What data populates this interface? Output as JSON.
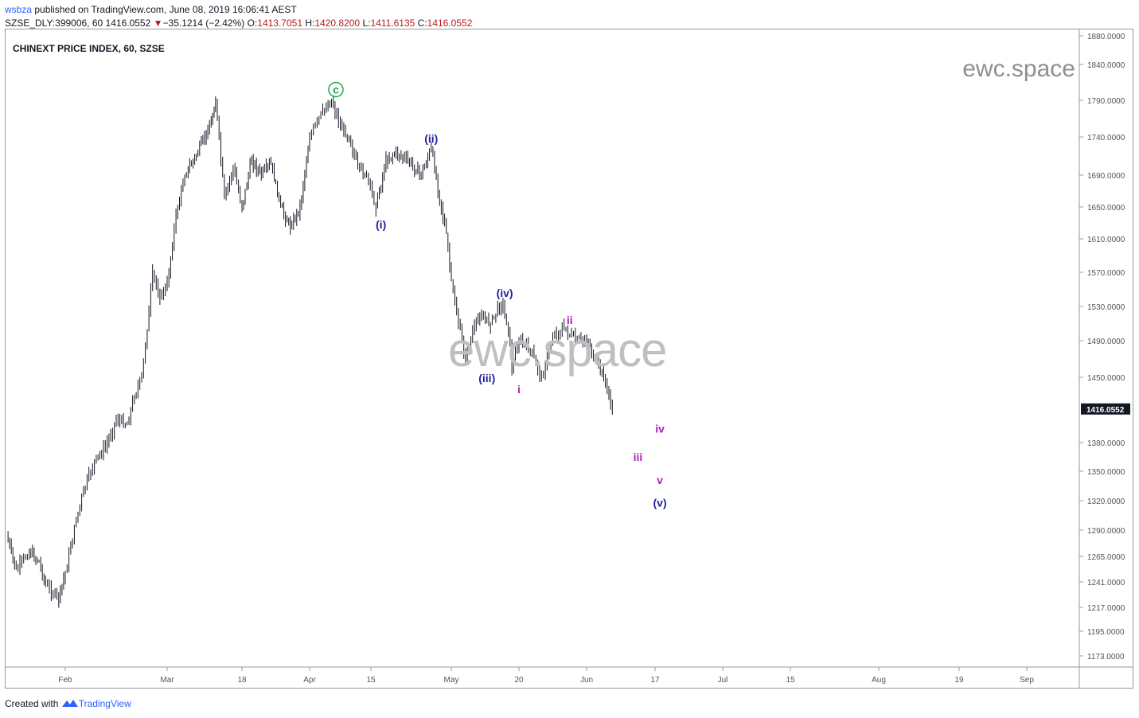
{
  "header": {
    "user": "wsbza",
    "published": " published on TradingView.com, June 08, 2019 16:06:41 AEST",
    "symbol": "SZSE_DLY:399006, 60",
    "last": "1416.0552",
    "arrow": "▼",
    "change": "−35.1214 (−2.42%)",
    "o_label": "O:",
    "o_val": "1413.7051",
    "h_label": "H:",
    "h_val": "1420.8200",
    "l_label": "L:",
    "l_val": "1411.6135",
    "c_label": "C:",
    "c_val": "1416.0552"
  },
  "chart_title": "CHINEXT PRICE INDEX, 60, SZSE",
  "watermark_top": "ewc.space",
  "watermark_center": "ewc.space",
  "footer": {
    "created": "Created with ",
    "brand": "TradingView"
  },
  "colors": {
    "candle": "#131722",
    "blue_wave": "#1f1f9e",
    "magenta_wave": "#b41cc4",
    "green_wave": "#21a84a",
    "axis_text": "#50535e",
    "price_tag_bg": "#131722"
  },
  "chart_data": {
    "type": "candlestick",
    "title": "CHINEXT PRICE INDEX, 60, SZSE",
    "price_axis_labels": [
      "1880.0000",
      "1840.0000",
      "1790.0000",
      "1740.0000",
      "1690.0000",
      "1650.0000",
      "1610.0000",
      "1570.0000",
      "1530.0000",
      "1490.0000",
      "1450.0000",
      "1416.0552",
      "1380.0000",
      "1350.0000",
      "1320.0000",
      "1290.0000",
      "1265.0000",
      "1241.0000",
      "1217.0000",
      "1195.0000",
      "1173.0000"
    ],
    "price_ticks": [
      1880,
      1840,
      1790,
      1740,
      1690,
      1650,
      1610,
      1570,
      1530,
      1490,
      1450,
      1380,
      1350,
      1320,
      1290,
      1265,
      1241,
      1217,
      1195,
      1173
    ],
    "last_price": 1416.0552,
    "time_axis_labels": [
      {
        "label": "Feb",
        "date": "2019-02-01"
      },
      {
        "label": "Mar",
        "date": "2019-03-01"
      },
      {
        "label": "18",
        "date": "2019-03-18"
      },
      {
        "label": "Apr",
        "date": "2019-04-01"
      },
      {
        "label": "15",
        "date": "2019-04-15"
      },
      {
        "label": "May",
        "date": "2019-05-01"
      },
      {
        "label": "20",
        "date": "2019-05-20"
      },
      {
        "label": "Jun",
        "date": "2019-06-01"
      },
      {
        "label": "17",
        "date": "2019-06-17"
      },
      {
        "label": "Jul",
        "date": "2019-07-01"
      },
      {
        "label": "15",
        "date": "2019-07-15"
      },
      {
        "label": "Aug",
        "date": "2019-08-01"
      },
      {
        "label": "19",
        "date": "2019-08-19"
      },
      {
        "label": "Sep",
        "date": "2019-09-01"
      }
    ],
    "price_path": [
      [
        "2019-01-14",
        1285
      ],
      [
        "2019-01-17",
        1252
      ],
      [
        "2019-01-21",
        1270
      ],
      [
        "2019-01-24",
        1260
      ],
      [
        "2019-01-26",
        1238
      ],
      [
        "2019-01-30",
        1225
      ],
      [
        "2019-02-01",
        1250
      ],
      [
        "2019-02-04",
        1300
      ],
      [
        "2019-02-06",
        1330
      ],
      [
        "2019-02-09",
        1360
      ],
      [
        "2019-02-12",
        1375
      ],
      [
        "2019-02-15",
        1405
      ],
      [
        "2019-02-18",
        1400
      ],
      [
        "2019-02-20",
        1430
      ],
      [
        "2019-02-22",
        1450
      ],
      [
        "2019-02-24",
        1525
      ],
      [
        "2019-02-25",
        1570
      ],
      [
        "2019-02-27",
        1540
      ],
      [
        "2019-03-01",
        1555
      ],
      [
        "2019-03-03",
        1640
      ],
      [
        "2019-03-05",
        1690
      ],
      [
        "2019-03-08",
        1720
      ],
      [
        "2019-03-11",
        1760
      ],
      [
        "2019-03-12",
        1790
      ],
      [
        "2019-03-14",
        1660
      ],
      [
        "2019-03-16",
        1700
      ],
      [
        "2019-03-18",
        1650
      ],
      [
        "2019-03-20",
        1710
      ],
      [
        "2019-03-22",
        1690
      ],
      [
        "2019-03-24",
        1705
      ],
      [
        "2019-03-26",
        1650
      ],
      [
        "2019-03-28",
        1625
      ],
      [
        "2019-03-30",
        1650
      ],
      [
        "2019-04-01",
        1740
      ],
      [
        "2019-04-04",
        1775
      ],
      [
        "2019-04-06",
        1790
      ],
      [
        "2019-04-08",
        1755
      ],
      [
        "2019-04-10",
        1740
      ],
      [
        "2019-04-12",
        1700
      ],
      [
        "2019-04-14",
        1690
      ],
      [
        "2019-04-16",
        1650
      ],
      [
        "2019-04-18",
        1710
      ],
      [
        "2019-04-20",
        1720
      ],
      [
        "2019-04-23",
        1705
      ],
      [
        "2019-04-25",
        1690
      ],
      [
        "2019-04-27",
        1725
      ],
      [
        "2019-04-29",
        1650
      ],
      [
        "2019-04-30",
        1615
      ],
      [
        "2019-05-01",
        1560
      ],
      [
        "2019-05-03",
        1510
      ],
      [
        "2019-05-05",
        1470
      ],
      [
        "2019-05-07",
        1500
      ],
      [
        "2019-05-09",
        1520
      ],
      [
        "2019-05-12",
        1510
      ],
      [
        "2019-05-15",
        1535
      ],
      [
        "2019-05-17",
        1505
      ],
      [
        "2019-05-18",
        1460
      ],
      [
        "2019-05-20",
        1490
      ],
      [
        "2019-05-22",
        1480
      ],
      [
        "2019-05-24",
        1450
      ],
      [
        "2019-05-26",
        1495
      ],
      [
        "2019-05-28",
        1505
      ],
      [
        "2019-05-30",
        1490
      ],
      [
        "2019-06-01",
        1490
      ],
      [
        "2019-06-03",
        1470
      ],
      [
        "2019-06-05",
        1450
      ],
      [
        "2019-06-07",
        1416
      ]
    ],
    "wave_labels": [
      {
        "text": "c",
        "date": "2019-04-07",
        "price": 1805,
        "color": "green",
        "circled": true
      },
      {
        "text": "(ii)",
        "date": "2019-04-27",
        "price": 1738,
        "color": "blue"
      },
      {
        "text": "(i)",
        "date": "2019-04-17",
        "price": 1628,
        "color": "blue"
      },
      {
        "text": "(iv)",
        "date": "2019-05-16",
        "price": 1546,
        "color": "blue"
      },
      {
        "text": "ii",
        "date": "2019-05-29",
        "price": 1514,
        "color": "magenta"
      },
      {
        "text": "(iii)",
        "date": "2019-05-11",
        "price": 1449,
        "color": "blue"
      },
      {
        "text": "i",
        "date": "2019-05-20",
        "price": 1437,
        "color": "magenta"
      },
      {
        "text": "iv",
        "date": "2019-06-18",
        "price": 1395,
        "color": "magenta"
      },
      {
        "text": "iii",
        "date": "2019-06-13",
        "price": 1365,
        "color": "magenta"
      },
      {
        "text": "v",
        "date": "2019-06-18",
        "price": 1341,
        "color": "magenta"
      },
      {
        "text": "(v)",
        "date": "2019-06-18",
        "price": 1318,
        "color": "blue"
      }
    ]
  }
}
